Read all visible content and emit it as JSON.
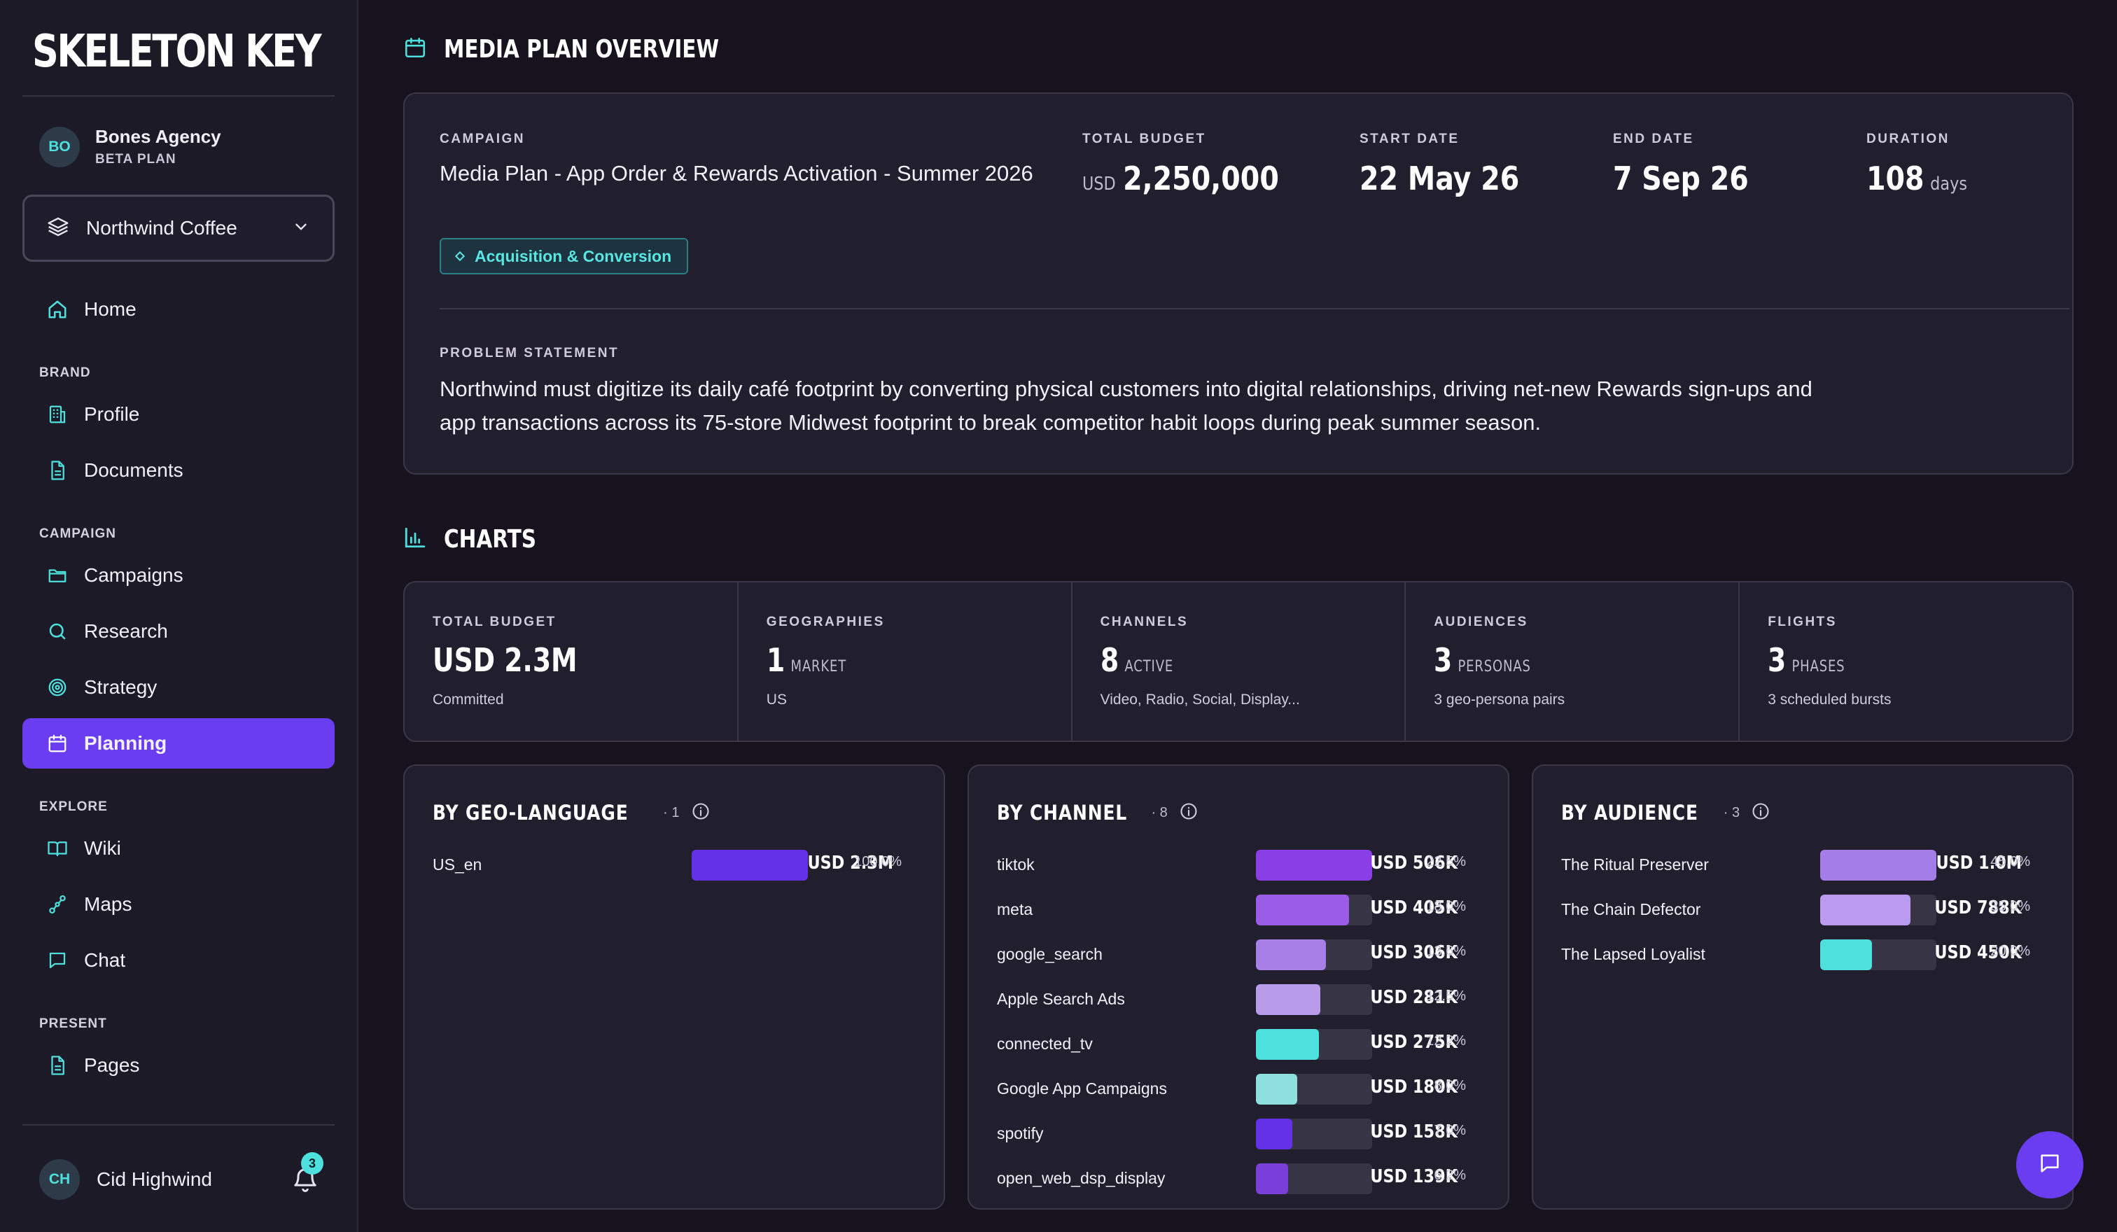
{
  "app": {
    "logo": "SKELETON KEY"
  },
  "sidebar": {
    "org": {
      "initials": "BO",
      "name": "Bones Agency",
      "plan": "BETA PLAN"
    },
    "brand_selector": {
      "value": "Northwind Coffee"
    },
    "home": "Home",
    "sections": {
      "brand": "BRAND",
      "campaign": "CAMPAIGN",
      "explore": "EXPLORE",
      "present": "PRESENT"
    },
    "brand_items": [
      "Profile",
      "Documents"
    ],
    "campaign_items": [
      "Campaigns",
      "Research",
      "Strategy",
      "Planning"
    ],
    "explore_items": [
      "Wiki",
      "Maps",
      "Chat"
    ],
    "present_items": [
      "Pages"
    ],
    "user": {
      "initials": "CH",
      "name": "Cid Highwind",
      "notifications": "3"
    }
  },
  "overview": {
    "title": "MEDIA PLAN OVERVIEW",
    "campaign_label": "CAMPAIGN",
    "campaign_name": "Media Plan - App Order & Rewards Activation - Summer 2026",
    "tag": "Acquisition & Conversion",
    "total_budget_label": "TOTAL BUDGET",
    "total_budget_currency": "USD",
    "total_budget_value": "2,250,000",
    "start_label": "START DATE",
    "start_value": "22 May 26",
    "end_label": "END DATE",
    "end_value": "7 Sep 26",
    "duration_label": "DURATION",
    "duration_value": "108",
    "duration_unit": "days",
    "problem_label": "PROBLEM STATEMENT",
    "problem_text": "Northwind must digitize its daily café footprint by converting physical customers into digital relationships, driving net-new Rewards sign-ups and app transactions across its 75-store Midwest footprint to break competitor habit loops during peak summer season."
  },
  "charts": {
    "title": "CHARTS",
    "kpis": [
      {
        "label": "TOTAL BUDGET",
        "value": "USD 2.3M",
        "unit": "",
        "sub": "Committed"
      },
      {
        "label": "GEOGRAPHIES",
        "value": "1",
        "unit": "MARKET",
        "sub": "US"
      },
      {
        "label": "CHANNELS",
        "value": "8",
        "unit": "ACTIVE",
        "sub": "Video, Radio, Social, Display..."
      },
      {
        "label": "AUDIENCES",
        "value": "3",
        "unit": "PERSONAS",
        "sub": "3 geo-persona pairs"
      },
      {
        "label": "FLIGHTS",
        "value": "3",
        "unit": "PHASES",
        "sub": "3 scheduled bursts"
      }
    ]
  },
  "chart_data": [
    {
      "type": "bar",
      "title": "BY GEO-LANGUAGE",
      "count": "1",
      "categories": [
        "US_en"
      ],
      "value_labels": [
        "USD 2.3M"
      ],
      "percent_labels": [
        "100.0%"
      ],
      "values": [
        100.0
      ],
      "colors": [
        "#6331e6"
      ]
    },
    {
      "type": "bar",
      "title": "BY CHANNEL",
      "count": "8",
      "categories": [
        "tiktok",
        "meta",
        "google_search",
        "Apple Search Ads",
        "connected_tv",
        "Google App Campaigns",
        "spotify",
        "open_web_dsp_display"
      ],
      "value_labels": [
        "USD 506K",
        "USD 405K",
        "USD 306K",
        "USD 281K",
        "USD 275K",
        "USD 180K",
        "USD 158K",
        "USD 139K"
      ],
      "percent_labels": [
        "22.5%",
        "18.0%",
        "13.6%",
        "12.5%",
        "12.2%",
        "8.0%",
        "7.0%",
        "6.2%"
      ],
      "values": [
        22.5,
        18.0,
        13.6,
        12.5,
        12.2,
        8.0,
        7.0,
        6.2
      ],
      "colors": [
        "#8a3ee6",
        "#9b5ce8",
        "#a77fe6",
        "#b89be9",
        "#4ee0dd",
        "#8ee0de",
        "#6331e6",
        "#7a3fd8"
      ]
    },
    {
      "type": "bar",
      "title": "BY AUDIENCE",
      "count": "3",
      "categories": [
        "The Ritual Preserver",
        "The Chain Defector",
        "The Lapsed Loyalist"
      ],
      "value_labels": [
        "USD 1.0M",
        "USD 788K",
        "USD 450K"
      ],
      "percent_labels": [
        "45.0%",
        "35.0%",
        "20.0%"
      ],
      "values": [
        45.0,
        35.0,
        20.0
      ],
      "colors": [
        "#a57de8",
        "#bb9bef",
        "#4ee0dd"
      ]
    }
  ]
}
